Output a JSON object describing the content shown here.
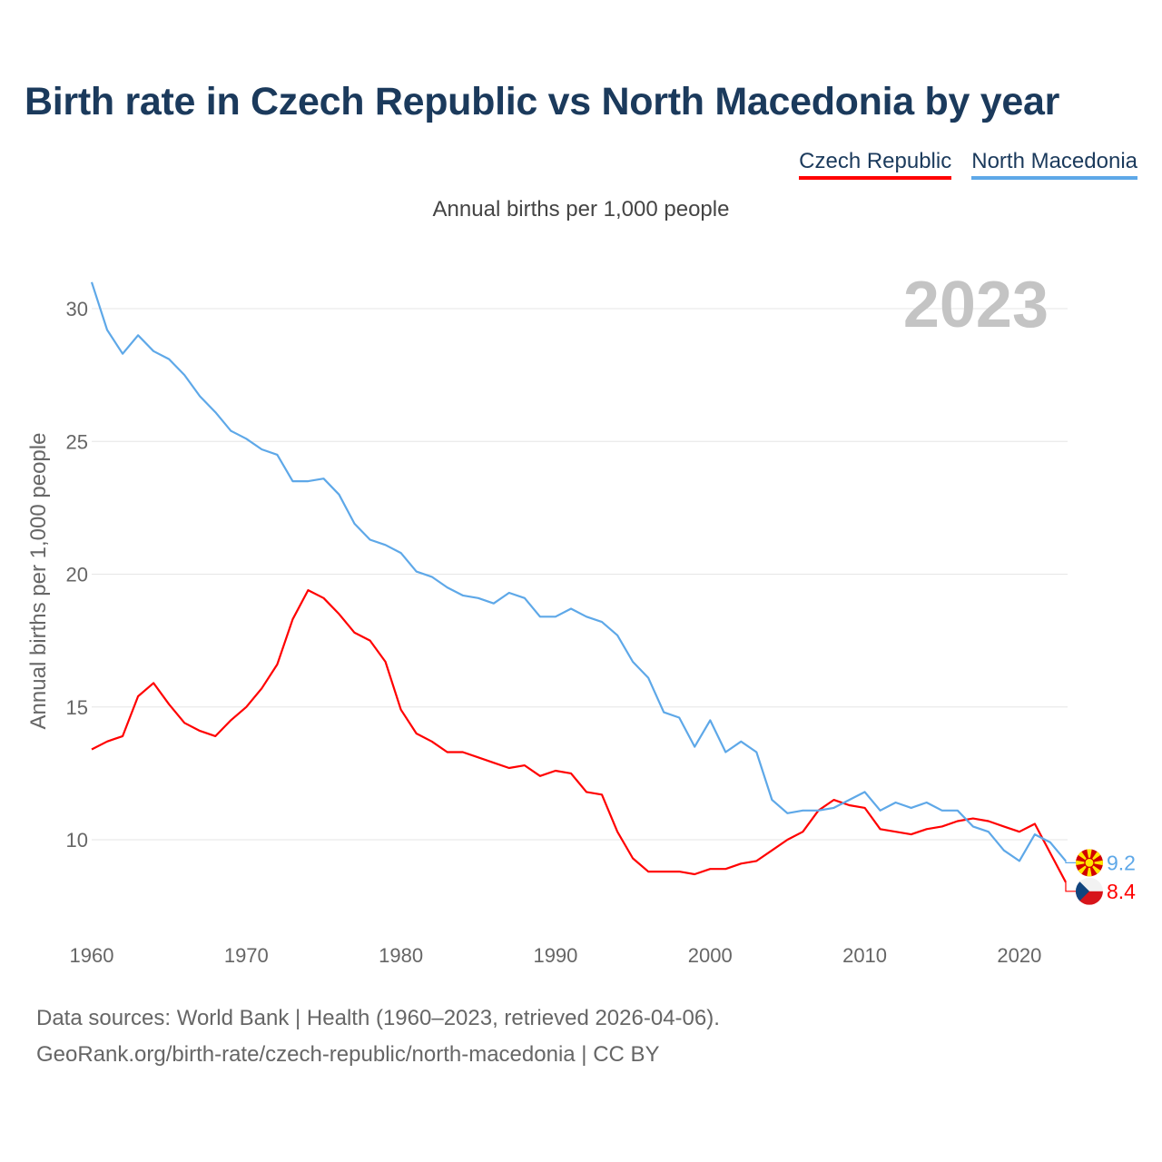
{
  "title": "Birth rate in Czech Republic vs North Macedonia by year",
  "subtitle": "Annual births per 1,000 people",
  "legend": {
    "czech": "Czech Republic",
    "macedonia": "North Macedonia"
  },
  "footer": {
    "line1": "Data sources: World Bank | Health (1960–2023, retrieved 2026-04-06).",
    "line2": "GeoRank.org/birth-rate/czech-republic/north-macedonia | CC BY"
  },
  "chart_data": {
    "type": "line",
    "title": "Birth rate in Czech Republic vs North Macedonia by year",
    "ylabel": "Annual births per 1,000 people",
    "xlabel": "",
    "year_watermark": "2023",
    "x": [
      1960,
      1961,
      1962,
      1963,
      1964,
      1965,
      1966,
      1967,
      1968,
      1969,
      1970,
      1971,
      1972,
      1973,
      1974,
      1975,
      1976,
      1977,
      1978,
      1979,
      1980,
      1981,
      1982,
      1983,
      1984,
      1985,
      1986,
      1987,
      1988,
      1989,
      1990,
      1991,
      1992,
      1993,
      1994,
      1995,
      1996,
      1997,
      1998,
      1999,
      2000,
      2001,
      2002,
      2003,
      2004,
      2005,
      2006,
      2007,
      2008,
      2009,
      2010,
      2011,
      2012,
      2013,
      2014,
      2015,
      2016,
      2017,
      2018,
      2019,
      2020,
      2021,
      2022,
      2023
    ],
    "xlim": [
      1960,
      2023
    ],
    "ylim": [
      7,
      31
    ],
    "x_ticks": [
      1960,
      1970,
      1980,
      1990,
      2000,
      2010,
      2020
    ],
    "y_ticks": [
      10,
      15,
      20,
      25,
      30
    ],
    "grid": true,
    "series": [
      {
        "name": "Czech Republic",
        "color": "#ff0000",
        "end_label": "8.4",
        "values": [
          13.4,
          13.7,
          13.9,
          15.4,
          15.9,
          15.1,
          14.4,
          14.1,
          13.9,
          14.5,
          15.0,
          15.7,
          16.6,
          18.3,
          19.4,
          19.1,
          18.5,
          17.8,
          17.5,
          16.7,
          14.9,
          14.0,
          13.7,
          13.3,
          13.3,
          13.1,
          12.9,
          12.7,
          12.8,
          12.4,
          12.6,
          12.5,
          11.8,
          11.7,
          10.3,
          9.3,
          8.8,
          8.8,
          8.8,
          8.7,
          8.9,
          8.9,
          9.1,
          9.2,
          9.6,
          10.0,
          10.3,
          11.1,
          11.5,
          11.3,
          11.2,
          10.4,
          10.3,
          10.2,
          10.4,
          10.5,
          10.7,
          10.8,
          10.7,
          10.5,
          10.3,
          10.6,
          9.5,
          8.4
        ]
      },
      {
        "name": "North Macedonia",
        "color": "#5ea8e8",
        "end_label": "9.2",
        "values": [
          31.0,
          29.2,
          28.3,
          29.0,
          28.4,
          28.1,
          27.5,
          26.7,
          26.1,
          25.4,
          25.1,
          24.7,
          24.5,
          23.5,
          23.5,
          23.6,
          23.0,
          21.9,
          21.3,
          21.1,
          20.8,
          20.1,
          19.9,
          19.5,
          19.2,
          19.1,
          18.9,
          19.3,
          19.1,
          18.4,
          18.4,
          18.7,
          18.4,
          18.2,
          17.7,
          16.7,
          16.1,
          14.8,
          14.6,
          13.5,
          14.5,
          13.3,
          13.7,
          13.3,
          11.5,
          11.0,
          11.1,
          11.1,
          11.2,
          11.5,
          11.8,
          11.1,
          11.4,
          11.2,
          11.4,
          11.1,
          11.1,
          10.5,
          10.3,
          9.6,
          9.2,
          10.2,
          9.9,
          9.2
        ]
      }
    ]
  }
}
